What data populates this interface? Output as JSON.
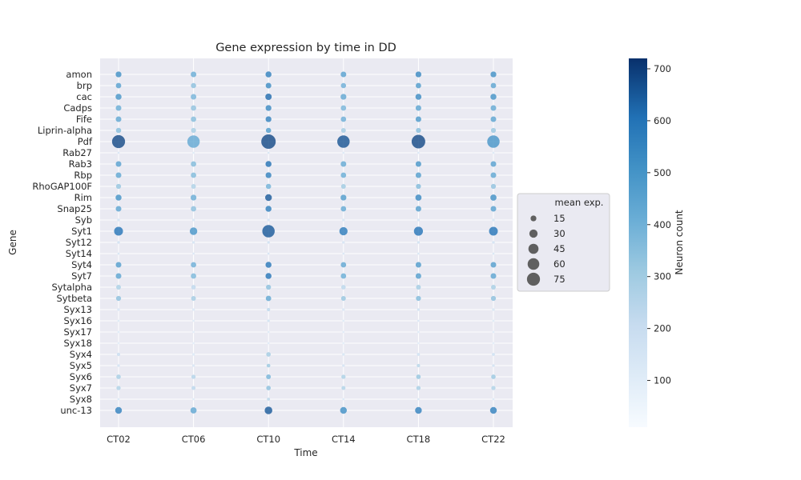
{
  "chart_data": {
    "type": "scatter",
    "title": "Gene expression by time in DD",
    "xlabel": "Time",
    "ylabel": "Gene",
    "x_categories": [
      "CT02",
      "CT06",
      "CT10",
      "CT14",
      "CT18",
      "CT22"
    ],
    "y_categories": [
      "amon",
      "brp",
      "cac",
      "Cadps",
      "Fife",
      "Liprin-alpha",
      "Pdf",
      "Rab27",
      "Rab3",
      "Rbp",
      "RhoGAP100F",
      "Rim",
      "Snap25",
      "Syb",
      "Syt1",
      "Syt12",
      "Syt14",
      "Syt4",
      "Syt7",
      "Sytalpha",
      "Sytbeta",
      "Syx13",
      "Syx16",
      "Syx17",
      "Syx18",
      "Syx4",
      "Syx5",
      "Syx6",
      "Syx7",
      "Syx8",
      "unc-13"
    ],
    "size_label": "mean exp.",
    "color_label": "Neuron count",
    "size_legend": [
      15,
      30,
      45,
      60,
      75
    ],
    "colorbar_ticks": [
      100,
      200,
      300,
      400,
      500,
      600,
      700
    ],
    "colorbar_range": [
      10,
      720
    ],
    "grid": true,
    "legend_position": "right",
    "mean_exp": [
      [
        15,
        14,
        16,
        14,
        15,
        15
      ],
      [
        13,
        12,
        14,
        12,
        13,
        13
      ],
      [
        16,
        14,
        18,
        15,
        16,
        16
      ],
      [
        14,
        13,
        15,
        13,
        14,
        14
      ],
      [
        14,
        13,
        15,
        13,
        14,
        14
      ],
      [
        12,
        11,
        12,
        10,
        11,
        11
      ],
      [
        75,
        68,
        92,
        68,
        82,
        68
      ],
      [
        2,
        2,
        2,
        2,
        2,
        2
      ],
      [
        14,
        13,
        16,
        14,
        14,
        14
      ],
      [
        14,
        13,
        15,
        13,
        14,
        14
      ],
      [
        11,
        10,
        12,
        10,
        11,
        11
      ],
      [
        16,
        15,
        20,
        15,
        17,
        17
      ],
      [
        14,
        13,
        16,
        13,
        14,
        14
      ],
      [
        3,
        3,
        3,
        3,
        3,
        3
      ],
      [
        35,
        25,
        68,
        30,
        36,
        34
      ],
      [
        3,
        3,
        3,
        3,
        3,
        3
      ],
      [
        2,
        2,
        2,
        2,
        2,
        2
      ],
      [
        14,
        13,
        16,
        13,
        14,
        14
      ],
      [
        14,
        13,
        16,
        13,
        14,
        14
      ],
      [
        10,
        9,
        11,
        9,
        10,
        10
      ],
      [
        11,
        10,
        13,
        10,
        11,
        11
      ],
      [
        3,
        3,
        5,
        3,
        3,
        3
      ],
      [
        2,
        2,
        3,
        2,
        2,
        2
      ],
      [
        2,
        2,
        2,
        2,
        2,
        2
      ],
      [
        2,
        2,
        2,
        2,
        2,
        2
      ],
      [
        5,
        3,
        9,
        3,
        4,
        4
      ],
      [
        3,
        3,
        6,
        3,
        5,
        3
      ],
      [
        9,
        8,
        10,
        8,
        9,
        9
      ],
      [
        8,
        7,
        9,
        7,
        8,
        8
      ],
      [
        2,
        2,
        4,
        2,
        2,
        2
      ],
      [
        20,
        17,
        26,
        20,
        20,
        20
      ]
    ],
    "neuron_count": [
      [
        520,
        420,
        560,
        460,
        540,
        520
      ],
      [
        460,
        350,
        530,
        410,
        480,
        450
      ],
      [
        500,
        390,
        620,
        440,
        530,
        510
      ],
      [
        420,
        340,
        540,
        390,
        450,
        430
      ],
      [
        440,
        360,
        560,
        410,
        490,
        450
      ],
      [
        360,
        290,
        480,
        300,
        360,
        320
      ],
      [
        680,
        430,
        680,
        660,
        680,
        500
      ],
      [
        150,
        130,
        160,
        140,
        140,
        140
      ],
      [
        460,
        370,
        610,
        430,
        500,
        460
      ],
      [
        440,
        370,
        560,
        420,
        470,
        440
      ],
      [
        330,
        270,
        400,
        310,
        370,
        340
      ],
      [
        510,
        420,
        650,
        480,
        540,
        520
      ],
      [
        450,
        350,
        570,
        430,
        470,
        460
      ],
      [
        170,
        150,
        170,
        160,
        170,
        160
      ],
      [
        600,
        500,
        650,
        580,
        600,
        600
      ],
      [
        180,
        170,
        190,
        170,
        180,
        180
      ],
      [
        160,
        150,
        170,
        150,
        160,
        160
      ],
      [
        470,
        410,
        590,
        440,
        480,
        470
      ],
      [
        450,
        380,
        600,
        420,
        470,
        450
      ],
      [
        280,
        230,
        350,
        240,
        300,
        290
      ],
      [
        350,
        300,
        440,
        330,
        370,
        350
      ],
      [
        150,
        140,
        240,
        150,
        190,
        160
      ],
      [
        130,
        120,
        180,
        130,
        150,
        130
      ],
      [
        120,
        110,
        130,
        120,
        120,
        120
      ],
      [
        110,
        110,
        120,
        110,
        110,
        110
      ],
      [
        200,
        130,
        300,
        160,
        180,
        190
      ],
      [
        170,
        150,
        320,
        170,
        250,
        180
      ],
      [
        290,
        260,
        390,
        280,
        330,
        320
      ],
      [
        270,
        240,
        350,
        270,
        290,
        270
      ],
      [
        140,
        130,
        250,
        140,
        160,
        140
      ],
      [
        560,
        440,
        650,
        520,
        560,
        560
      ]
    ]
  }
}
